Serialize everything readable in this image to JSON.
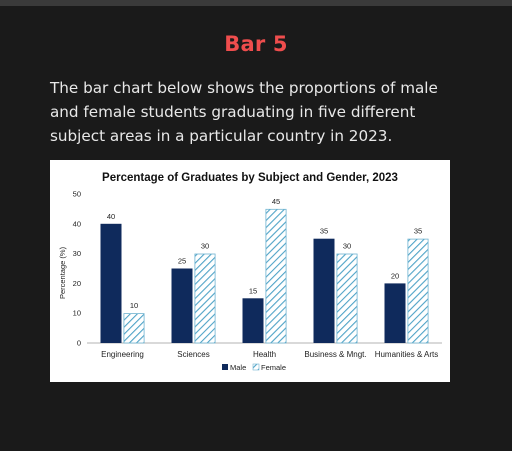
{
  "heading": "Bar 5",
  "description": "The bar chart below shows the proportions of male and female students graduating in five different subject areas in a particular country in 2023.",
  "colors": {
    "male": "#0f2a5c",
    "female_stripe": "#4fa3c7",
    "female_border": "#6fb3d0",
    "heading": "#ef4d4d"
  },
  "chart_data": {
    "type": "bar",
    "title": "Percentage of Graduates by Subject and Gender, 2023",
    "ylabel": "Percentage (%)",
    "xlabel": "",
    "ylim": [
      0,
      50
    ],
    "yticks": [
      0,
      10,
      20,
      30,
      40,
      50
    ],
    "grid": false,
    "legend_position": "bottom",
    "categories": [
      "Engineering",
      "Sciences",
      "Health",
      "Business & Mngt.",
      "Humanities & Arts"
    ],
    "series": [
      {
        "name": "Male",
        "values": [
          40,
          25,
          15,
          35,
          20
        ]
      },
      {
        "name": "Female",
        "values": [
          10,
          30,
          45,
          30,
          35
        ]
      }
    ]
  }
}
